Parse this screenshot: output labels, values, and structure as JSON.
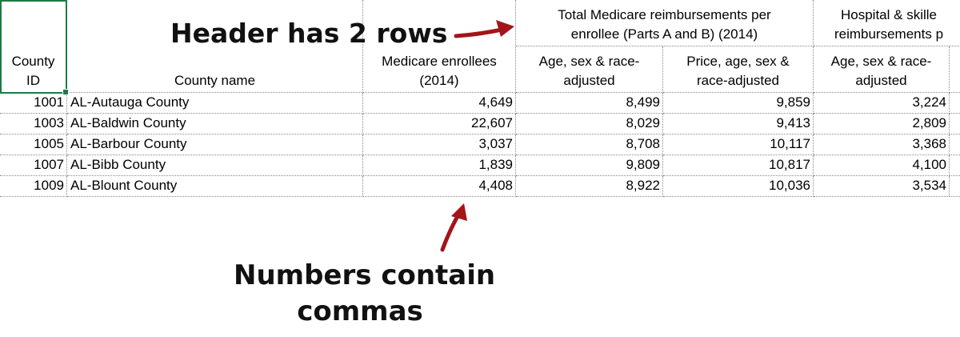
{
  "spreadsheet": {
    "headers": {
      "county_id": [
        "County",
        "ID"
      ],
      "county_name": "County name",
      "medicare_enrollees": [
        "Medicare enrollees",
        "(2014)"
      ],
      "group1": [
        "Total Medicare reimbursements per",
        "enrollee (Parts A and B) (2014)"
      ],
      "group1_sub1": [
        "Age, sex & race-",
        "adjusted"
      ],
      "group1_sub2": [
        "Price, age, sex &",
        "race-adjusted"
      ],
      "group2": [
        "Hospital & skille",
        "reimbursements p"
      ],
      "group2_sub1": [
        "Age, sex & race-",
        "adjusted"
      ]
    },
    "rows": [
      {
        "id": "1001",
        "name": "AL-Autauga County",
        "enrollees": "4,649",
        "age_adj": "8,499",
        "price_adj": "9,859",
        "hosp_age_adj": "3,224"
      },
      {
        "id": "1003",
        "name": "AL-Baldwin County",
        "enrollees": "22,607",
        "age_adj": "8,029",
        "price_adj": "9,413",
        "hosp_age_adj": "2,809"
      },
      {
        "id": "1005",
        "name": "AL-Barbour County",
        "enrollees": "3,037",
        "age_adj": "8,708",
        "price_adj": "10,117",
        "hosp_age_adj": "3,368"
      },
      {
        "id": "1007",
        "name": "AL-Bibb County",
        "enrollees": "1,839",
        "age_adj": "9,809",
        "price_adj": "10,817",
        "hosp_age_adj": "4,100"
      },
      {
        "id": "1009",
        "name": "AL-Blount County",
        "enrollees": "4,408",
        "age_adj": "8,922",
        "price_adj": "10,036",
        "hosp_age_adj": "3,534"
      }
    ]
  },
  "annotations": {
    "header_note": "Header has 2 rows",
    "numbers_note": [
      "Numbers contain",
      "commas"
    ],
    "arrow_color": "#a31518",
    "selection_color": "#1f7a45"
  }
}
